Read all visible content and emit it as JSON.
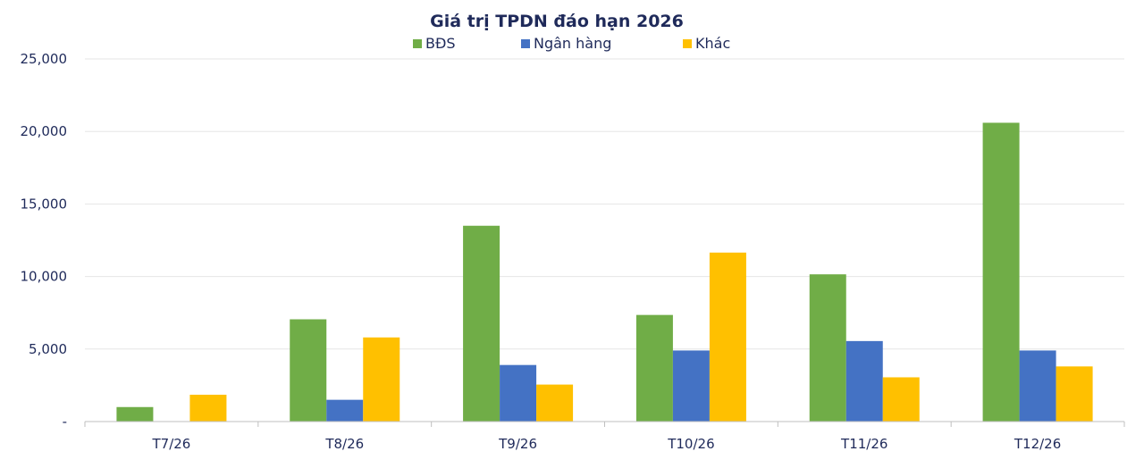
{
  "chart_data": {
    "type": "bar",
    "title": "Giá trị TPDN đáo hạn 2026",
    "categories": [
      "T7/26",
      "T8/26",
      "T9/26",
      "T10/26",
      "T11/26",
      "T12/26"
    ],
    "series": [
      {
        "name": "BĐS",
        "color": "#70ad47",
        "values": [
          1000,
          7050,
          13500,
          7350,
          10150,
          20600
        ]
      },
      {
        "name": "Ngân hàng",
        "color": "#4472c4",
        "values": [
          0,
          1500,
          3900,
          4900,
          5550,
          4900
        ]
      },
      {
        "name": "Khác",
        "color": "#ffc000",
        "values": [
          1850,
          5800,
          2550,
          11650,
          3050,
          3800
        ]
      }
    ],
    "ylim": [
      0,
      25000
    ],
    "yticks": [
      0,
      5000,
      10000,
      15000,
      20000,
      25000
    ],
    "ytick_labels": [
      "-",
      "5,000",
      "10,000",
      "15,000",
      "20,000",
      "25,000"
    ],
    "xlabel": "",
    "ylabel": "",
    "grid": true,
    "legend_position": "top-center"
  }
}
